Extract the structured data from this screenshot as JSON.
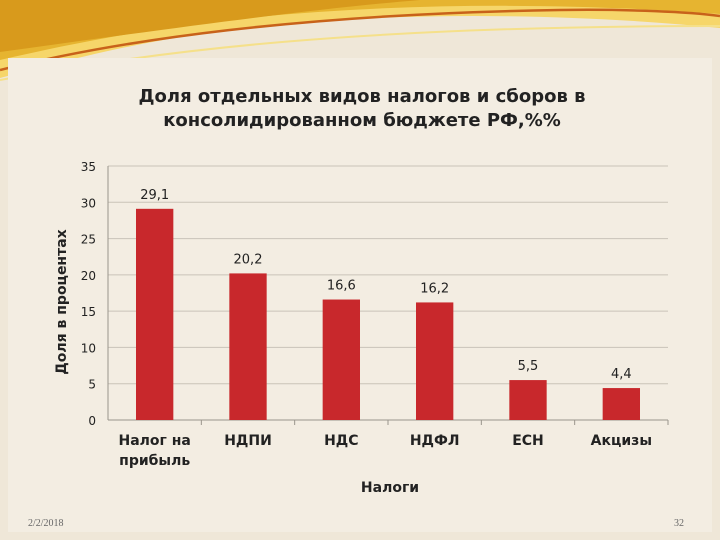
{
  "slide": {
    "date": "2/2/2018",
    "page_number": "32",
    "accent_colors": [
      "#e6b430",
      "#f6d66a",
      "#c8621a"
    ]
  },
  "chart_data": {
    "type": "bar",
    "title_line1": "Доля отдельных видов налогов и сборов в",
    "title_line2": "консолидированном бюджете РФ,%%",
    "categories": [
      [
        "Налог на",
        "прибыль"
      ],
      [
        "НДПИ"
      ],
      [
        "НДС"
      ],
      [
        "НДФЛ"
      ],
      [
        "ЕСН"
      ],
      [
        "Акцизы"
      ]
    ],
    "values": [
      29.1,
      20.2,
      16.6,
      16.2,
      5.5,
      4.4
    ],
    "data_labels": [
      "29,1",
      "20,2",
      "16,6",
      "16,2",
      "5,5",
      "4,4"
    ],
    "xlabel": "Налоги",
    "ylabel": "Доля в процентах",
    "ylim": [
      0,
      35
    ],
    "yticks": [
      0,
      5,
      10,
      15,
      20,
      25,
      30,
      35
    ],
    "grid": true,
    "bar_color": "#c8282c"
  }
}
